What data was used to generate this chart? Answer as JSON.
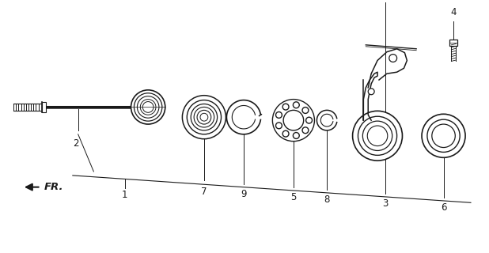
{
  "bg_color": "#ffffff",
  "line_color": "#1a1a1a",
  "fig_width": 6.18,
  "fig_height": 3.2,
  "dpi": 100,
  "parts": [
    "1",
    "2",
    "3",
    "4",
    "5",
    "6",
    "7",
    "8",
    "9"
  ],
  "fr_label": "FR.",
  "label_fontsize": 8.5
}
